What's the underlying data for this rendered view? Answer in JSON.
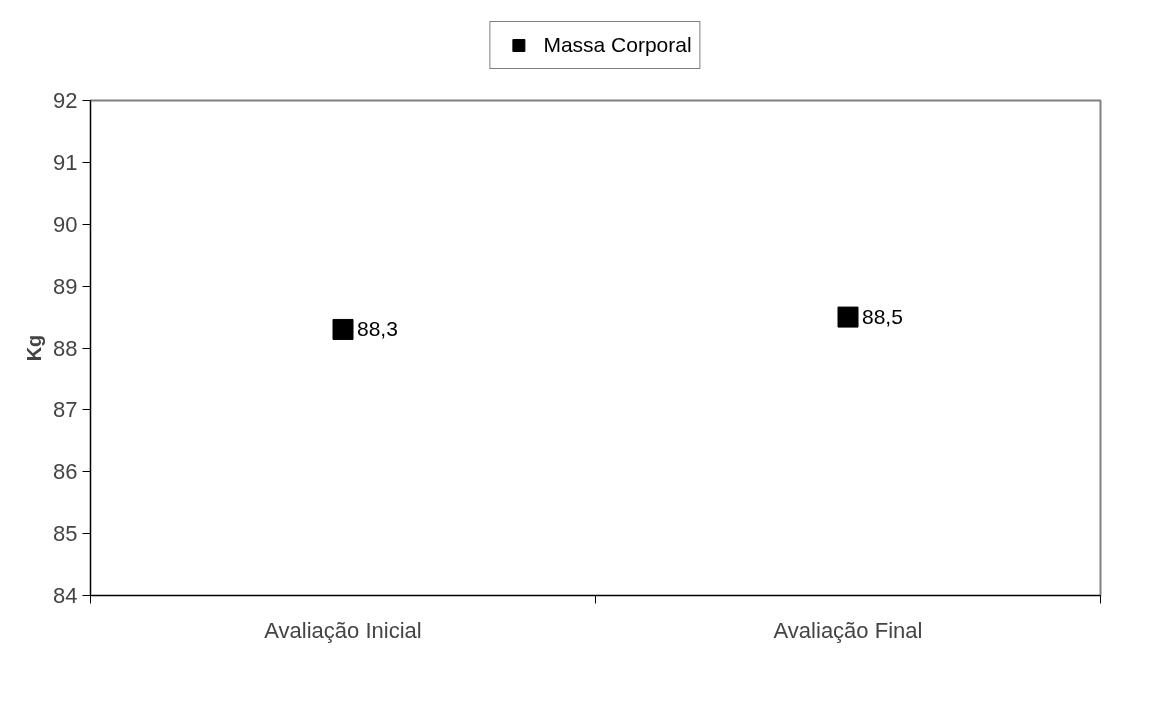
{
  "chart_data": {
    "type": "scatter",
    "ylabel": "Kg",
    "categories": [
      "Avaliação Inicial",
      "Avaliação Final"
    ],
    "series": [
      {
        "name": "Massa Corporal",
        "color": "#000000",
        "values": [
          88.3,
          88.5
        ],
        "value_labels": [
          "88,3",
          "88,5"
        ]
      }
    ],
    "ylim": [
      84,
      92
    ],
    "yticks": [
      84,
      85,
      86,
      87,
      88,
      89,
      90,
      91,
      92
    ],
    "marker": "square",
    "legend": "top",
    "grid": false
  }
}
